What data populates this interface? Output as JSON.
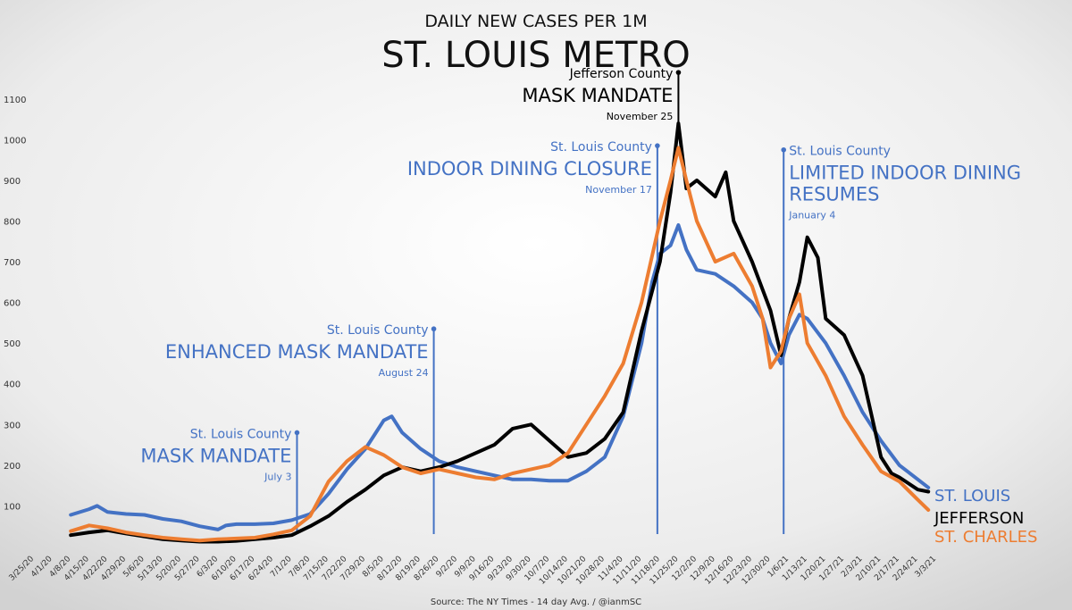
{
  "header": {
    "subtitle": "DAILY NEW CASES PER 1M",
    "title": "ST. LOUIS METRO"
  },
  "source": "Source: The NY Times - 14 day Avg. / @ianmSC",
  "chart_data": {
    "type": "line",
    "title": "ST. LOUIS METRO",
    "subtitle": "DAILY NEW CASES PER 1M",
    "ylim": [
      0,
      1150
    ],
    "yticks": [
      100,
      200,
      300,
      400,
      500,
      600,
      700,
      800,
      900,
      1000,
      1100
    ],
    "xlim": [
      "2020-03-25",
      "2021-03-03"
    ],
    "xticks": [
      "3/25/20",
      "4/1/20",
      "4/8/20",
      "4/15/20",
      "4/22/20",
      "4/29/20",
      "5/6/20",
      "5/13/20",
      "5/20/20",
      "5/27/20",
      "6/3/20",
      "6/10/20",
      "6/17/20",
      "6/24/20",
      "7/1/20",
      "7/8/20",
      "7/15/20",
      "7/22/20",
      "7/29/20",
      "8/5/20",
      "8/12/20",
      "8/19/20",
      "8/26/20",
      "9/2/20",
      "9/9/20",
      "9/16/20",
      "9/23/20",
      "9/30/20",
      "10/7/20",
      "10/14/20",
      "10/21/20",
      "10/28/20",
      "11/4/20",
      "11/11/20",
      "11/18/20",
      "11/25/20",
      "12/2/20",
      "12/9/20",
      "12/16/20",
      "12/23/20",
      "12/30/20",
      "1/6/21",
      "1/13/21",
      "1/20/21",
      "1/27/21",
      "2/3/21",
      "2/10/21",
      "2/17/21",
      "2/24/21",
      "3/3/21"
    ],
    "grid": false,
    "legend": "end-of-line labels",
    "series": [
      {
        "name": "ST. LOUIS",
        "color": "#4472C4",
        "points": [
          [
            "2020-04-08",
            78
          ],
          [
            "2020-04-15",
            92
          ],
          [
            "2020-04-18",
            100
          ],
          [
            "2020-04-22",
            85
          ],
          [
            "2020-04-29",
            80
          ],
          [
            "2020-05-06",
            78
          ],
          [
            "2020-05-13",
            68
          ],
          [
            "2020-05-20",
            62
          ],
          [
            "2020-05-27",
            50
          ],
          [
            "2020-06-03",
            42
          ],
          [
            "2020-06-06",
            52
          ],
          [
            "2020-06-10",
            55
          ],
          [
            "2020-06-17",
            55
          ],
          [
            "2020-06-24",
            57
          ],
          [
            "2020-07-01",
            65
          ],
          [
            "2020-07-08",
            80
          ],
          [
            "2020-07-15",
            130
          ],
          [
            "2020-07-22",
            190
          ],
          [
            "2020-07-29",
            240
          ],
          [
            "2020-08-02",
            280
          ],
          [
            "2020-08-05",
            310
          ],
          [
            "2020-08-08",
            320
          ],
          [
            "2020-08-12",
            280
          ],
          [
            "2020-08-19",
            240
          ],
          [
            "2020-08-26",
            210
          ],
          [
            "2020-09-02",
            195
          ],
          [
            "2020-09-09",
            185
          ],
          [
            "2020-09-16",
            175
          ],
          [
            "2020-09-23",
            165
          ],
          [
            "2020-09-30",
            165
          ],
          [
            "2020-10-07",
            162
          ],
          [
            "2020-10-14",
            162
          ],
          [
            "2020-10-21",
            185
          ],
          [
            "2020-10-28",
            220
          ],
          [
            "2020-11-04",
            320
          ],
          [
            "2020-11-11",
            500
          ],
          [
            "2020-11-15",
            650
          ],
          [
            "2020-11-18",
            720
          ],
          [
            "2020-11-22",
            740
          ],
          [
            "2020-11-25",
            790
          ],
          [
            "2020-11-28",
            730
          ],
          [
            "2020-12-02",
            680
          ],
          [
            "2020-12-09",
            670
          ],
          [
            "2020-12-16",
            640
          ],
          [
            "2020-12-23",
            600
          ],
          [
            "2020-12-27",
            560
          ],
          [
            "2020-12-30",
            500
          ],
          [
            "2021-01-03",
            450
          ],
          [
            "2021-01-06",
            520
          ],
          [
            "2021-01-10",
            570
          ],
          [
            "2021-01-13",
            560
          ],
          [
            "2021-01-20",
            500
          ],
          [
            "2021-01-27",
            420
          ],
          [
            "2021-02-03",
            330
          ],
          [
            "2021-02-10",
            260
          ],
          [
            "2021-02-17",
            200
          ],
          [
            "2021-02-24",
            165
          ],
          [
            "2021-02-28",
            145
          ]
        ]
      },
      {
        "name": "JEFFERSON",
        "color": "#000000",
        "points": [
          [
            "2020-04-08",
            28
          ],
          [
            "2020-04-15",
            35
          ],
          [
            "2020-04-22",
            40
          ],
          [
            "2020-04-29",
            32
          ],
          [
            "2020-05-06",
            25
          ],
          [
            "2020-05-13",
            18
          ],
          [
            "2020-05-20",
            15
          ],
          [
            "2020-05-27",
            12
          ],
          [
            "2020-06-03",
            12
          ],
          [
            "2020-06-10",
            14
          ],
          [
            "2020-06-17",
            18
          ],
          [
            "2020-06-24",
            22
          ],
          [
            "2020-07-01",
            28
          ],
          [
            "2020-07-08",
            50
          ],
          [
            "2020-07-15",
            75
          ],
          [
            "2020-07-22",
            110
          ],
          [
            "2020-07-29",
            140
          ],
          [
            "2020-08-05",
            175
          ],
          [
            "2020-08-12",
            195
          ],
          [
            "2020-08-19",
            185
          ],
          [
            "2020-08-26",
            195
          ],
          [
            "2020-09-02",
            210
          ],
          [
            "2020-09-09",
            230
          ],
          [
            "2020-09-16",
            250
          ],
          [
            "2020-09-23",
            290
          ],
          [
            "2020-09-30",
            300
          ],
          [
            "2020-10-07",
            260
          ],
          [
            "2020-10-14",
            220
          ],
          [
            "2020-10-21",
            230
          ],
          [
            "2020-10-28",
            265
          ],
          [
            "2020-11-04",
            330
          ],
          [
            "2020-11-11",
            530
          ],
          [
            "2020-11-18",
            700
          ],
          [
            "2020-11-22",
            870
          ],
          [
            "2020-11-25",
            1040
          ],
          [
            "2020-11-28",
            880
          ],
          [
            "2020-12-02",
            900
          ],
          [
            "2020-12-09",
            860
          ],
          [
            "2020-12-13",
            920
          ],
          [
            "2020-12-16",
            800
          ],
          [
            "2020-12-23",
            700
          ],
          [
            "2020-12-30",
            580
          ],
          [
            "2021-01-03",
            470
          ],
          [
            "2021-01-06",
            560
          ],
          [
            "2021-01-10",
            650
          ],
          [
            "2021-01-13",
            760
          ],
          [
            "2021-01-17",
            710
          ],
          [
            "2021-01-20",
            560
          ],
          [
            "2021-01-27",
            520
          ],
          [
            "2021-02-03",
            420
          ],
          [
            "2021-02-10",
            220
          ],
          [
            "2021-02-14",
            180
          ],
          [
            "2021-02-17",
            170
          ],
          [
            "2021-02-24",
            140
          ],
          [
            "2021-02-28",
            135
          ]
        ]
      },
      {
        "name": "ST. CHARLES",
        "color": "#ED7D31",
        "points": [
          [
            "2020-04-08",
            38
          ],
          [
            "2020-04-15",
            52
          ],
          [
            "2020-04-22",
            45
          ],
          [
            "2020-04-29",
            35
          ],
          [
            "2020-05-06",
            28
          ],
          [
            "2020-05-13",
            22
          ],
          [
            "2020-05-20",
            18
          ],
          [
            "2020-05-27",
            15
          ],
          [
            "2020-06-03",
            18
          ],
          [
            "2020-06-10",
            20
          ],
          [
            "2020-06-17",
            22
          ],
          [
            "2020-06-24",
            30
          ],
          [
            "2020-07-01",
            40
          ],
          [
            "2020-07-08",
            75
          ],
          [
            "2020-07-15",
            160
          ],
          [
            "2020-07-22",
            210
          ],
          [
            "2020-07-29",
            245
          ],
          [
            "2020-08-05",
            225
          ],
          [
            "2020-08-12",
            195
          ],
          [
            "2020-08-19",
            180
          ],
          [
            "2020-08-26",
            190
          ],
          [
            "2020-09-02",
            180
          ],
          [
            "2020-09-09",
            170
          ],
          [
            "2020-09-16",
            165
          ],
          [
            "2020-09-23",
            180
          ],
          [
            "2020-09-30",
            190
          ],
          [
            "2020-10-07",
            200
          ],
          [
            "2020-10-14",
            230
          ],
          [
            "2020-10-21",
            300
          ],
          [
            "2020-10-28",
            370
          ],
          [
            "2020-11-04",
            450
          ],
          [
            "2020-11-11",
            600
          ],
          [
            "2020-11-18",
            800
          ],
          [
            "2020-11-22",
            900
          ],
          [
            "2020-11-25",
            980
          ],
          [
            "2020-11-28",
            900
          ],
          [
            "2020-12-02",
            800
          ],
          [
            "2020-12-09",
            700
          ],
          [
            "2020-12-16",
            720
          ],
          [
            "2020-12-23",
            640
          ],
          [
            "2020-12-27",
            560
          ],
          [
            "2020-12-30",
            440
          ],
          [
            "2021-01-03",
            480
          ],
          [
            "2021-01-06",
            560
          ],
          [
            "2021-01-10",
            620
          ],
          [
            "2021-01-13",
            500
          ],
          [
            "2021-01-20",
            420
          ],
          [
            "2021-01-27",
            320
          ],
          [
            "2021-02-03",
            250
          ],
          [
            "2021-02-10",
            185
          ],
          [
            "2021-02-17",
            160
          ],
          [
            "2021-02-24",
            115
          ],
          [
            "2021-02-28",
            90
          ]
        ]
      }
    ],
    "annotations": [
      {
        "date": "2020-07-03",
        "value": 280,
        "color": "#4472C4",
        "label": "St. Louis County",
        "headline": [
          "MASK MANDATE"
        ],
        "date_label": "July 3"
      },
      {
        "date": "2020-08-24",
        "value": 535,
        "color": "#4472C4",
        "label": "St. Louis County",
        "headline": [
          "ENHANCED MASK MANDATE"
        ],
        "date_label": "August 24"
      },
      {
        "date": "2020-11-17",
        "value": 985,
        "color": "#4472C4",
        "label": "St. Louis County",
        "headline": [
          "INDOOR DINING CLOSURE"
        ],
        "date_label": "November 17"
      },
      {
        "date": "2020-11-25",
        "value": 1165,
        "color": "#000000",
        "label": "Jefferson County",
        "headline": [
          "MASK MANDATE"
        ],
        "date_label": "November 25"
      },
      {
        "date": "2021-01-04",
        "value": 975,
        "color": "#4472C4",
        "label": "St. Louis County",
        "headline": [
          "LIMITED INDOOR DINING",
          "RESUMES"
        ],
        "date_label": "January 4"
      }
    ]
  }
}
